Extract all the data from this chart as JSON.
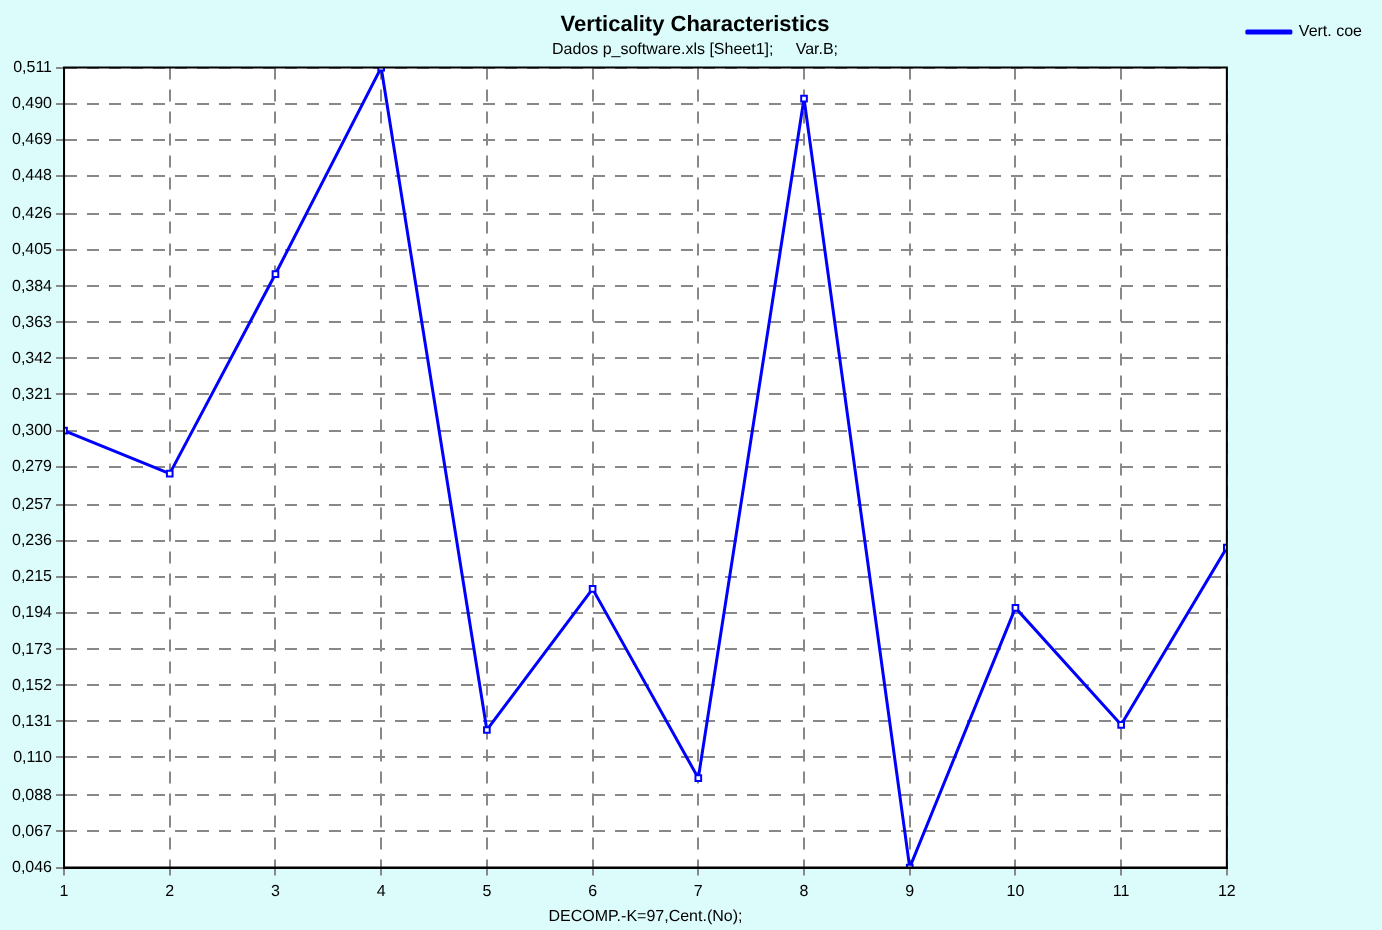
{
  "chart_data": {
    "type": "line",
    "title": "Verticality Characteristics",
    "subtitle": "Dados p_software.xls [Sheet1];     Var.B;",
    "xlabel": "DECOMP.-K=97,Cent.(No);",
    "x": [
      1,
      2,
      3,
      4,
      5,
      6,
      7,
      8,
      9,
      10,
      11,
      12
    ],
    "series": [
      {
        "name": "Vert. coe",
        "color": "#0000ff",
        "values": [
          0.3,
          0.275,
          0.391,
          0.511,
          0.126,
          0.208,
          0.098,
          0.493,
          0.046,
          0.197,
          0.129,
          0.232
        ]
      }
    ],
    "xlim": [
      1,
      12
    ],
    "xticks": [
      1,
      2,
      3,
      4,
      5,
      6,
      7,
      8,
      9,
      10,
      11,
      12
    ],
    "ylim": [
      0.046,
      0.511
    ],
    "yticks": [
      {
        "value": 0.046,
        "label": "0,046"
      },
      {
        "value": 0.067,
        "label": "0,067"
      },
      {
        "value": 0.088,
        "label": "0,088"
      },
      {
        "value": 0.11,
        "label": "0,110"
      },
      {
        "value": 0.131,
        "label": "0,131"
      },
      {
        "value": 0.152,
        "label": "0,152"
      },
      {
        "value": 0.173,
        "label": "0,173"
      },
      {
        "value": 0.194,
        "label": "0,194"
      },
      {
        "value": 0.215,
        "label": "0,215"
      },
      {
        "value": 0.236,
        "label": "0,236"
      },
      {
        "value": 0.257,
        "label": "0,257"
      },
      {
        "value": 0.279,
        "label": "0,279"
      },
      {
        "value": 0.3,
        "label": "0,300"
      },
      {
        "value": 0.321,
        "label": "0,321"
      },
      {
        "value": 0.342,
        "label": "0,342"
      },
      {
        "value": 0.363,
        "label": "0,363"
      },
      {
        "value": 0.384,
        "label": "0,384"
      },
      {
        "value": 0.405,
        "label": "0,405"
      },
      {
        "value": 0.426,
        "label": "0,426"
      },
      {
        "value": 0.448,
        "label": "0,448"
      },
      {
        "value": 0.469,
        "label": "0,469"
      },
      {
        "value": 0.49,
        "label": "0,490"
      },
      {
        "value": 0.511,
        "label": "0,511"
      }
    ],
    "grid": true,
    "legend": "top right",
    "marker": "square",
    "line_style": "solid"
  }
}
